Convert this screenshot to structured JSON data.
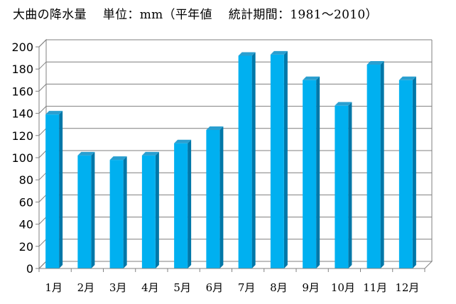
{
  "chart_data": {
    "type": "bar",
    "title": "大曲の降水量　 単位：mm（平年値　 統計期間：1981～2010）",
    "xlabel": "",
    "ylabel": "",
    "ylim": [
      0,
      200
    ],
    "yticks": [
      0,
      20,
      40,
      60,
      80,
      100,
      120,
      140,
      160,
      180,
      200
    ],
    "grid": true,
    "legend": "none",
    "categories": [
      "1月",
      "2月",
      "3月",
      "4月",
      "5月",
      "6月",
      "7月",
      "8月",
      "9月",
      "10月",
      "11月",
      "12月"
    ],
    "values": [
      139,
      102,
      98,
      102,
      113,
      125,
      192,
      193,
      170,
      147,
      184,
      170
    ],
    "colors": {
      "bar_front": "#00B0F0",
      "bar_side": "#0077A8",
      "bar_top": "#2A9FD0",
      "grid": "#7F7F7F",
      "axis": "#808080"
    }
  }
}
